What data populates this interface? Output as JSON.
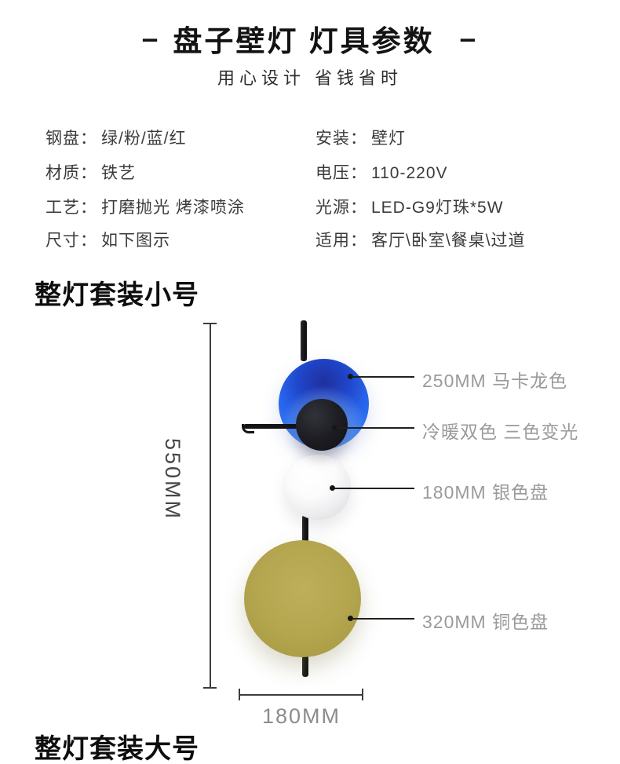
{
  "header": {
    "dash_left": "–",
    "title": "盘子壁灯 灯具参数",
    "dash_right": "–",
    "subtitle": "用心设计 省钱省时"
  },
  "specs": {
    "left": [
      {
        "label": "钢盘：",
        "value": "绿/粉/蓝/红"
      },
      {
        "label": "材质：",
        "value": "铁艺"
      },
      {
        "label": "工艺：",
        "value": "打磨抛光 烤漆喷涂"
      },
      {
        "label": "尺寸：",
        "value": "如下图示"
      }
    ],
    "right": [
      {
        "label": "安装：",
        "value": "壁灯"
      },
      {
        "label": "电压：",
        "value": "110-220V"
      },
      {
        "label": "光源：",
        "value": "LED-G9灯珠*5W"
      },
      {
        "label": "适用：",
        "value": "客厅\\卧室\\餐桌\\过道"
      }
    ]
  },
  "sections": {
    "small": "整灯套装小号",
    "large": "整灯套装大号"
  },
  "diagram": {
    "height_label": "550MM",
    "width_label": "180MM",
    "annotations": [
      {
        "text": "250MM 马卡龙色"
      },
      {
        "text": "冷暖双色 三色变光"
      },
      {
        "text": "180MM 银色盘"
      },
      {
        "text": "320MM 铜色盘"
      }
    ],
    "colors": {
      "blue_disc": "#2f74f4",
      "blue_disc_dark": "#20309f",
      "black_disc": "#101014",
      "silver_disc": "#ececee",
      "bronze_disc": "#b4a64f",
      "rod": "#141416",
      "annotation_text": "#9a9a9a",
      "dimension_text_dark": "#474747",
      "dimension_text_light": "#8c8c8c"
    }
  }
}
